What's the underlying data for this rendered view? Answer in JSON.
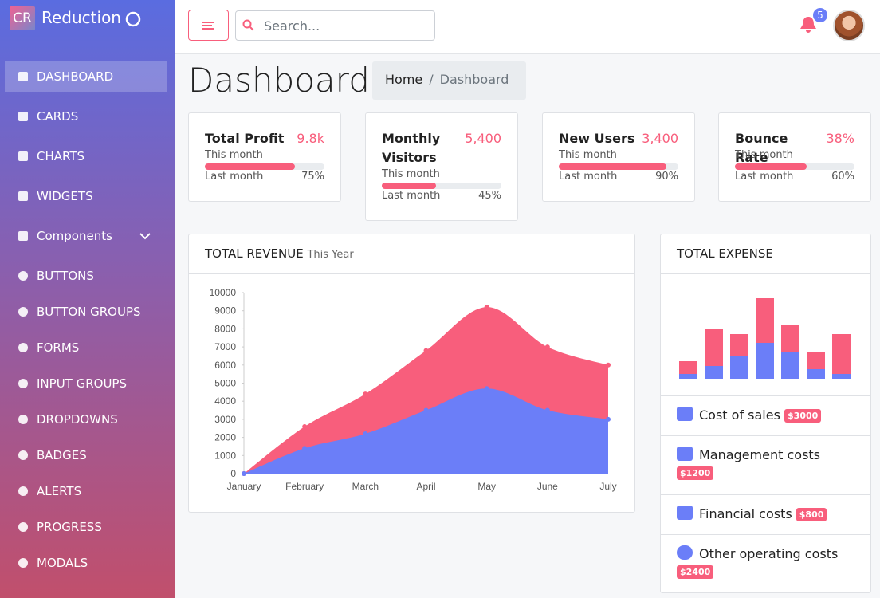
{
  "sidebar": {
    "brand_logo": "CR",
    "brand": "Reduction",
    "nav": [
      "DASHBOARD",
      "CARDS",
      "CHARTS",
      "WIDGETS",
      "Components",
      "BUTTONS",
      "BUTTON GROUPS",
      "FORMS",
      "INPUT GROUPS",
      "DROPDOWNS",
      "BADGES",
      "ALERTS",
      "PROGRESS",
      "MODALS"
    ]
  },
  "topbar": {
    "search_placeholder": "Search...",
    "notifications": "5"
  },
  "header": {
    "title": "Dashboard",
    "breadcrumb": [
      "Home",
      "Dashboard"
    ]
  },
  "stat_cards": [
    {
      "title": "Total Profit",
      "value": "9.8k",
      "period": "This month",
      "compare": "Last month",
      "progress": 75,
      "progress_label": "75%"
    },
    {
      "title": "Monthly Visitors",
      "value": "5,400",
      "period": "This month",
      "compare": "Last month",
      "progress": 45,
      "progress_label": "45%"
    },
    {
      "title": "New Users",
      "value": "3,400",
      "period": "This month",
      "compare": "Last month",
      "progress": 90,
      "progress_label": "90%"
    },
    {
      "title": "Bounce Rate",
      "value": "38%",
      "period": "This month",
      "compare": "Last month",
      "progress": 60,
      "progress_label": "60%"
    }
  ],
  "revenue_chart": {
    "type": "area",
    "title": "TOTAL REVENUE",
    "subtitle": "This Year",
    "categories": [
      "January",
      "February",
      "March",
      "April",
      "May",
      "June",
      "July"
    ],
    "ylim": [
      0,
      10000
    ],
    "yticks": [
      0,
      1000,
      2000,
      3000,
      4000,
      5000,
      6000,
      7000,
      8000,
      9000,
      10000
    ],
    "series": [
      {
        "color": "#f85e7c",
        "values": [
          0,
          2600,
          4400,
          6800,
          9200,
          7000,
          6000
        ]
      },
      {
        "color": "#6b7ef8",
        "values": [
          0,
          1400,
          2200,
          3500,
          4700,
          3500,
          3000
        ]
      }
    ]
  },
  "expense_chart": {
    "type": "bar",
    "stacked": true,
    "title": "TOTAL EXPENSE",
    "ylim": [
      0,
      110
    ],
    "series": [
      {
        "color": "#6b7ef8",
        "values": [
          6,
          16,
          29,
          45,
          34,
          12,
          6
        ]
      },
      {
        "color": "#f85e7c",
        "values": [
          16,
          46,
          27,
          56,
          33,
          22,
          50
        ]
      }
    ]
  },
  "expense_items": [
    {
      "label": "Cost of sales",
      "badge": "$3000"
    },
    {
      "label": "Management costs",
      "badge": "$1200"
    },
    {
      "label": "Financial costs",
      "badge": "$800"
    },
    {
      "label": "Other operating costs",
      "badge": "$2400"
    }
  ]
}
